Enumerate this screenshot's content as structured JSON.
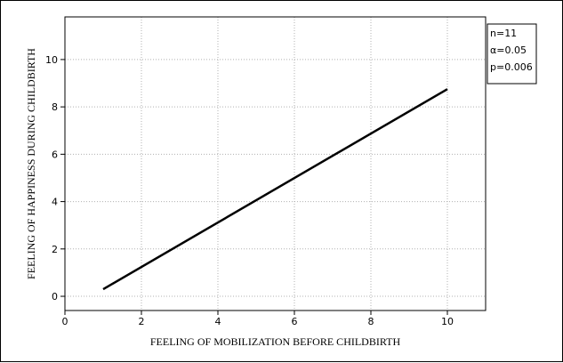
{
  "chart_data": {
    "type": "line",
    "xlabel": "FEELING OF MOBILIZATION BEFORE CHILDBIRTH",
    "ylabel": "FEELING OF HAPPINESS DURING CHILDBIRTH",
    "xlim": [
      0,
      11
    ],
    "ylim": [
      -0.6,
      11.8
    ],
    "xticks": [
      0,
      2,
      4,
      6,
      8,
      10
    ],
    "yticks": [
      0,
      2,
      4,
      6,
      8,
      10
    ],
    "grid": true,
    "series": [
      {
        "x": [
          1,
          10
        ],
        "y": [
          0.3,
          8.75
        ],
        "color": "#000000"
      }
    ],
    "annotation": {
      "placement": "top-right",
      "lines": [
        "n=11",
        "α=0.05",
        "p=0.006"
      ]
    }
  }
}
